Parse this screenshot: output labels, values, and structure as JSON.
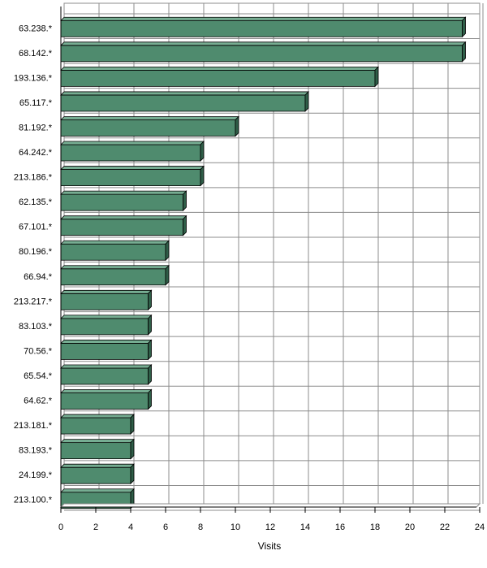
{
  "chart_data": {
    "type": "bar",
    "orientation": "horizontal",
    "categories": [
      "63.238.*",
      "68.142.*",
      "193.136.*",
      "65.117.*",
      "81.192.*",
      "64.242.*",
      "213.186.*",
      "62.135.*",
      "67.101.*",
      "80.196.*",
      "66.94.*",
      "213.217.*",
      "83.103.*",
      "70.56.*",
      "65.54.*",
      "64.62.*",
      "213.181.*",
      "83.193.*",
      "24.199.*",
      "213.100.*"
    ],
    "values": [
      23,
      23,
      18,
      14,
      10,
      8,
      8,
      7,
      7,
      6,
      6,
      5,
      5,
      5,
      5,
      5,
      4,
      4,
      4,
      4
    ],
    "xlabel": "Visits",
    "ylabel": "",
    "xlim": [
      0,
      24
    ],
    "xticks": [
      "0",
      "2",
      "4",
      "6",
      "8",
      "10",
      "12",
      "14",
      "16",
      "18",
      "20",
      "22",
      "24"
    ],
    "grid": true,
    "bar_color": "#4f8b6e",
    "bar_top_color": "#76ad92",
    "bar_side_color": "#2f5e48",
    "grid_color": "#8c8c8c"
  }
}
